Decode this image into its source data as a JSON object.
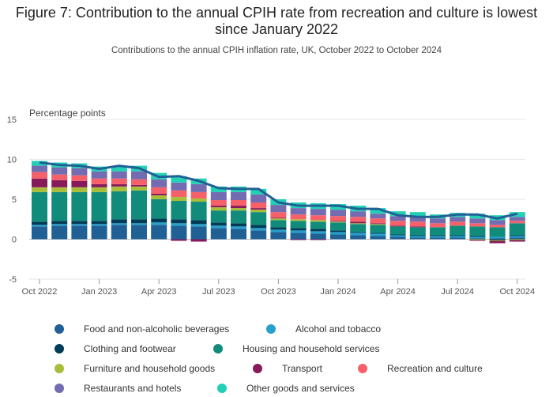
{
  "title": "Figure 7: Contribution to the annual CPIH rate from recreation and culture is lowest since January 2022",
  "subtitle": "Contributions to the annual CPIH inflation rate, UK, October 2022 to October 2024",
  "chart_data": {
    "type": "bar",
    "stacked": true,
    "ylabel": "Percentage points",
    "ylim": [
      -5,
      15
    ],
    "yticks": [
      -5,
      0,
      5,
      10,
      15
    ],
    "xticks": [
      "Oct 2022",
      "Jan 2023",
      "Apr 2023",
      "Jul 2023",
      "Oct 2023",
      "Jan 2024",
      "Apr 2024",
      "Jul 2024",
      "Oct 2024"
    ],
    "categories": [
      "Oct 2022",
      "Nov 2022",
      "Dec 2022",
      "Jan 2023",
      "Feb 2023",
      "Mar 2023",
      "Apr 2023",
      "May 2023",
      "Jun 2023",
      "Jul 2023",
      "Aug 2023",
      "Sep 2023",
      "Oct 2023",
      "Nov 2023",
      "Dec 2023",
      "Jan 2024",
      "Feb 2024",
      "Mar 2024",
      "Apr 2024",
      "May 2024",
      "Jun 2024",
      "Jul 2024",
      "Aug 2024",
      "Sep 2024",
      "Oct 2024"
    ],
    "series": [
      {
        "name": "Food and non-alcoholic beverages",
        "color": "#206095",
        "values": [
          1.6,
          1.7,
          1.7,
          1.7,
          1.8,
          1.8,
          1.8,
          1.7,
          1.6,
          1.4,
          1.3,
          1.1,
          0.9,
          0.8,
          0.7,
          0.6,
          0.5,
          0.4,
          0.3,
          0.2,
          0.2,
          0.2,
          0.1,
          0.1,
          0.2
        ]
      },
      {
        "name": "Alcohol and tobacco",
        "color": "#27a0cc",
        "values": [
          0.2,
          0.2,
          0.2,
          0.2,
          0.2,
          0.2,
          0.3,
          0.3,
          0.3,
          0.3,
          0.3,
          0.3,
          0.3,
          0.3,
          0.3,
          0.3,
          0.3,
          0.3,
          0.2,
          0.2,
          0.2,
          0.2,
          0.2,
          0.2,
          0.2
        ]
      },
      {
        "name": "Clothing and footwear",
        "color": "#003c57",
        "values": [
          0.4,
          0.4,
          0.4,
          0.4,
          0.5,
          0.5,
          0.5,
          0.5,
          0.5,
          0.4,
          0.4,
          0.4,
          0.3,
          0.3,
          0.3,
          0.2,
          0.1,
          0.1,
          0.1,
          0.1,
          0.1,
          0.1,
          0.1,
          -0.1,
          0.1
        ]
      },
      {
        "name": "Housing and household services",
        "color": "#118c7b",
        "values": [
          3.7,
          3.6,
          3.6,
          3.6,
          3.5,
          3.6,
          2.4,
          2.3,
          2.3,
          1.5,
          1.6,
          1.6,
          0.9,
          0.9,
          0.9,
          1.0,
          1.0,
          1.0,
          1.0,
          1.0,
          1.0,
          1.2,
          1.2,
          1.2,
          1.5
        ]
      },
      {
        "name": "Furniture and household goods",
        "color": "#a8bd3a",
        "values": [
          0.6,
          0.6,
          0.6,
          0.6,
          0.6,
          0.5,
          0.5,
          0.5,
          0.4,
          0.4,
          0.3,
          0.3,
          0.2,
          0.2,
          0.2,
          0.1,
          0.1,
          0.1,
          0.0,
          0.0,
          0.0,
          0.0,
          -0.1,
          -0.1,
          -0.1
        ]
      },
      {
        "name": "Transport",
        "color": "#871a5b",
        "values": [
          1.1,
          0.9,
          0.8,
          0.4,
          0.3,
          0.2,
          0.2,
          -0.2,
          -0.3,
          0.2,
          0.3,
          0.2,
          0.1,
          -0.1,
          -0.1,
          0.1,
          0.2,
          0.1,
          0.1,
          0.1,
          0.0,
          0.0,
          -0.1,
          -0.3,
          -0.2
        ]
      },
      {
        "name": "Recreation and culture",
        "color": "#f66068",
        "values": [
          0.8,
          0.7,
          0.7,
          0.7,
          0.7,
          0.7,
          0.8,
          0.8,
          0.8,
          0.7,
          0.7,
          0.7,
          0.7,
          0.6,
          0.6,
          0.6,
          0.6,
          0.6,
          0.6,
          0.6,
          0.5,
          0.5,
          0.4,
          0.3,
          0.3
        ]
      },
      {
        "name": "Restaurants and hotels",
        "color": "#746cb1",
        "values": [
          0.8,
          0.9,
          0.9,
          0.9,
          0.9,
          1.0,
          1.0,
          1.0,
          1.0,
          1.0,
          1.0,
          1.0,
          0.9,
          0.8,
          0.8,
          0.8,
          0.7,
          0.6,
          0.6,
          0.6,
          0.6,
          0.6,
          0.6,
          0.6,
          0.5
        ]
      },
      {
        "name": "Other goods and services",
        "color": "#22d0b6",
        "values": [
          0.6,
          0.6,
          0.6,
          0.6,
          0.7,
          0.7,
          0.8,
          0.8,
          0.7,
          0.7,
          0.7,
          0.7,
          0.7,
          0.7,
          0.7,
          0.7,
          0.7,
          0.7,
          0.6,
          0.6,
          0.5,
          0.5,
          0.6,
          0.6,
          0.6
        ]
      }
    ],
    "line": {
      "name": "CPIH annual rate",
      "color": "#206095",
      "values": [
        9.6,
        9.3,
        9.2,
        8.8,
        9.2,
        8.9,
        7.8,
        7.9,
        7.3,
        6.4,
        6.3,
        6.3,
        4.6,
        4.2,
        4.2,
        4.2,
        3.8,
        3.8,
        3.0,
        2.8,
        2.8,
        3.1,
        3.1,
        2.6,
        3.2
      ]
    },
    "grid": true,
    "legend_position": "bottom"
  }
}
